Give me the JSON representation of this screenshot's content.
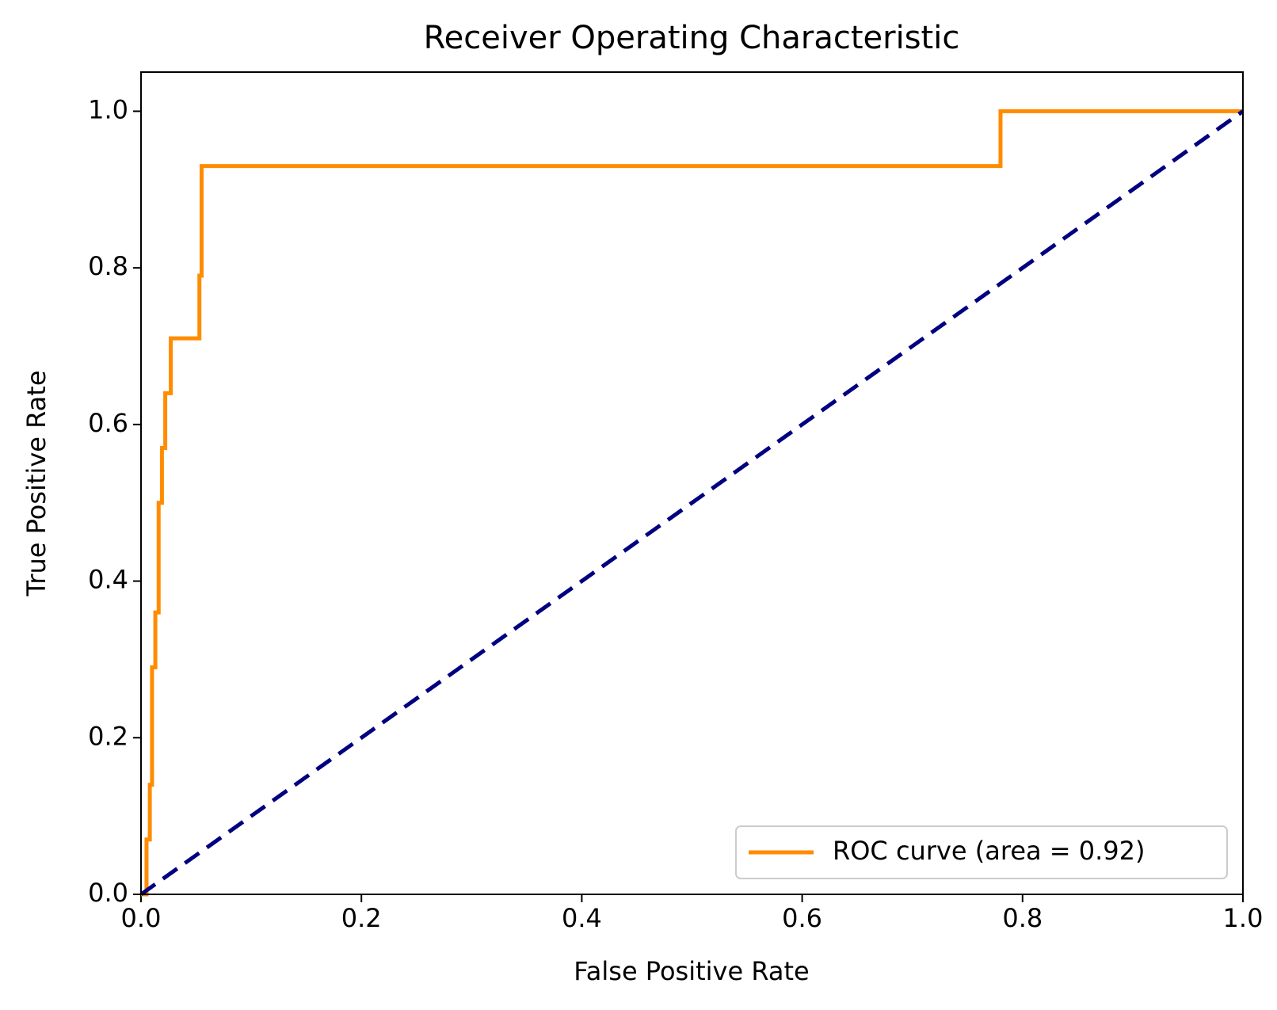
{
  "chart_data": {
    "type": "line",
    "title": "Receiver Operating Characteristic",
    "x_label": "False Positive Rate",
    "y_label": "True Positive Rate",
    "xlim": [
      0,
      1
    ],
    "ylim": [
      0,
      1.05
    ],
    "xticks": [
      {
        "value": 0,
        "label": "0.0"
      },
      0.2,
      0.4,
      0.6,
      0.8,
      {
        "value": 1,
        "label": "1.0"
      }
    ],
    "yticks": [
      {
        "value": 0,
        "label": "0.0"
      },
      0.2,
      0.4,
      0.6,
      0.8,
      {
        "value": 1,
        "label": "1.0"
      }
    ],
    "legend": "lower right",
    "series": [
      {
        "name": "ROC curve (area = 0.92)",
        "color": "#ff8c00",
        "dash": false,
        "x": [
          0,
          0.005,
          0.005,
          0.008,
          0.008,
          0.01,
          0.01,
          0.013,
          0.013,
          0.016,
          0.016,
          0.019,
          0.019,
          0.022,
          0.022,
          0.027,
          0.027,
          0.045,
          0.045,
          0.053,
          0.053,
          0.055,
          0.055,
          0.78,
          0.78,
          1.0
        ],
        "values": [
          0,
          0,
          0.07,
          0.07,
          0.14,
          0.14,
          0.29,
          0.29,
          0.36,
          0.36,
          0.5,
          0.5,
          0.57,
          0.57,
          0.64,
          0.64,
          0.71,
          0.71,
          0.71,
          0.71,
          0.79,
          0.79,
          0.93,
          0.93,
          1.0,
          1.0
        ]
      },
      {
        "name": null,
        "color": "#000080",
        "dash": true,
        "x": [
          0,
          1
        ],
        "values": [
          0,
          1
        ]
      }
    ]
  }
}
